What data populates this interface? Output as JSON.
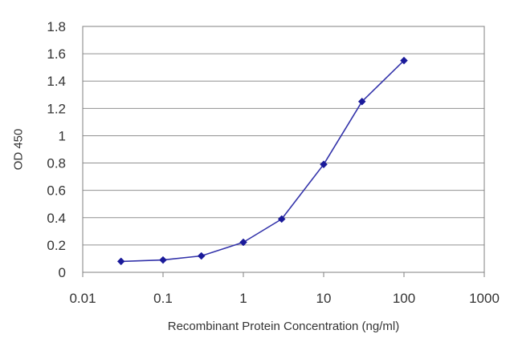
{
  "chart_data": {
    "type": "line",
    "title": "",
    "xlabel": "Recombinant Protein Concentration (ng/ml)",
    "ylabel": "OD 450",
    "x_scale": "log",
    "xlim": [
      0.01,
      1000
    ],
    "ylim": [
      0,
      1.8
    ],
    "x_ticks": [
      0.01,
      0.1,
      1,
      10,
      100,
      1000
    ],
    "x_tick_labels": [
      "0.01",
      "0.1",
      "1",
      "10",
      "100",
      "1000"
    ],
    "y_ticks": [
      0,
      0.2,
      0.4,
      0.6,
      0.8,
      1,
      1.2,
      1.4,
      1.6,
      1.8
    ],
    "y_tick_labels": [
      "0",
      "0.2",
      "0.4",
      "0.6",
      "0.8",
      "1",
      "1.2",
      "1.4",
      "1.6",
      "1.8"
    ],
    "grid": {
      "horizontal": true,
      "vertical": false
    },
    "legend": "none",
    "series": [
      {
        "x": [
          0.03,
          0.1,
          0.3,
          1,
          3,
          10,
          30,
          100
        ],
        "y": [
          0.08,
          0.09,
          0.12,
          0.22,
          0.39,
          0.79,
          1.25,
          1.55
        ],
        "color": "#3333aa",
        "marker": "diamond",
        "marker_color": "#1a1a9a"
      }
    ],
    "colors": {
      "frame": "#808080",
      "grid": "#909090",
      "text": "#333333"
    }
  }
}
